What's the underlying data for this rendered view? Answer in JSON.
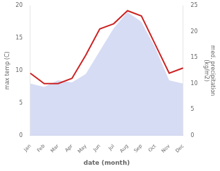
{
  "chart_data": {
    "type": "line",
    "categories": [
      "Jan",
      "Feb",
      "Mar",
      "Apr",
      "May",
      "Jun",
      "Jul",
      "Aug",
      "Sep",
      "Oct",
      "Nov",
      "Dec"
    ],
    "xlabel": "date (month)",
    "ylabel": "max temp (C)",
    "y2label": "med. precipitation\n(kg/m2)",
    "ylim": [
      0,
      20
    ],
    "yticks": [
      0,
      5,
      10,
      15,
      20
    ],
    "y2lim": [
      0,
      25
    ],
    "y2ticks": [
      0,
      5,
      10,
      15,
      20,
      25
    ],
    "grid": false,
    "series": [
      {
        "type": "area",
        "color": "#c5cdf0",
        "values": [
          8.0,
          7.5,
          8.5,
          8.2,
          9.5,
          13.0,
          16.5,
          19.0,
          17.5,
          13.5,
          8.5,
          8.0
        ]
      },
      {
        "type": "line",
        "color": "#cc2222",
        "axis": "y2",
        "values": [
          12.0,
          10.0,
          10.0,
          11.0,
          15.5,
          20.5,
          21.5,
          24.0,
          23.0,
          17.5,
          12.0,
          13.0
        ]
      }
    ]
  }
}
